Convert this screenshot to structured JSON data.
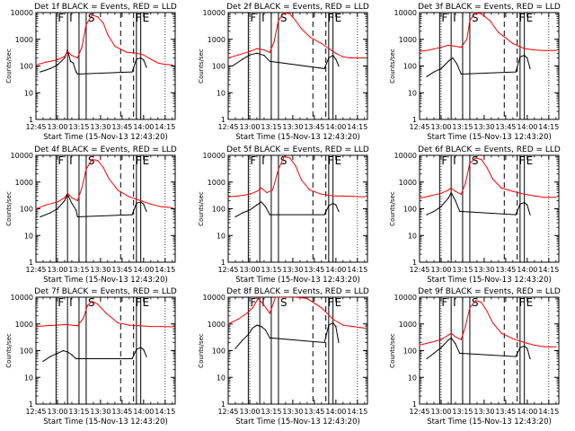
{
  "figure": {
    "xlabel": "Start Time (15-Nov-13 12:43:20)",
    "ylabel": "Counts/sec",
    "x_ticks": [
      "12:45",
      "13:00",
      "13:15",
      "13:30",
      "13:45",
      "14:00",
      "14:15"
    ],
    "y_ticks": [
      "1",
      "10",
      "100",
      "1000",
      "10000"
    ],
    "markers": [
      {
        "label": "F",
        "time": "12:59"
      },
      {
        "label": "I",
        "time": "13:07"
      },
      {
        "label": "S",
        "time": "13:20"
      },
      {
        "label": "F",
        "time": "13:53"
      },
      {
        "label": "E",
        "time": "13:58"
      }
    ],
    "colors": {
      "events": "#000000",
      "lld": "#ff0000"
    }
  },
  "chart_data": [
    {
      "type": "line",
      "title": "Det 1f BLACK = Events, RED = LLD",
      "xlim": [
        "12:45",
        "14:22"
      ],
      "ylim": [
        1,
        10000
      ],
      "yscale": "log",
      "series": [
        {
          "name": "Events",
          "color": "#000000",
          "x": [
            "12:48",
            "12:55",
            "13:00",
            "13:05",
            "13:07",
            "13:09",
            "13:11",
            "13:13",
            "13:14",
            "13:52",
            "13:55",
            "13:58",
            "14:00",
            "14:02"
          ],
          "values": [
            60,
            80,
            110,
            200,
            400,
            150,
            130,
            60,
            50,
            60,
            180,
            200,
            170,
            90
          ]
        },
        {
          "name": "LLD",
          "color": "#ff0000",
          "x": [
            "12:45",
            "12:52",
            "13:00",
            "13:05",
            "13:07",
            "13:10",
            "13:14",
            "13:17",
            "13:20",
            "13:24",
            "13:28",
            "13:32",
            "13:35",
            "13:40",
            "13:48",
            "13:55",
            "14:00",
            "14:05",
            "14:10",
            "14:15",
            "14:20"
          ],
          "values": [
            110,
            140,
            170,
            230,
            350,
            250,
            200,
            500,
            3500,
            8000,
            7000,
            4000,
            1500,
            550,
            330,
            300,
            260,
            180,
            130,
            115,
            110
          ]
        }
      ]
    },
    {
      "type": "line",
      "title": "Det 2f BLACK = Events, RED = LLD",
      "xlim": [
        "12:45",
        "14:22"
      ],
      "ylim": [
        1,
        10000
      ],
      "yscale": "log",
      "series": [
        {
          "name": "Events",
          "color": "#000000",
          "x": [
            "12:48",
            "12:55",
            "13:00",
            "13:05",
            "13:10",
            "13:14",
            "13:52",
            "13:55",
            "13:58",
            "14:00",
            "14:02"
          ],
          "values": [
            100,
            180,
            260,
            300,
            250,
            150,
            80,
            200,
            250,
            180,
            100
          ]
        },
        {
          "name": "LLD",
          "color": "#ff0000",
          "x": [
            "12:45",
            "12:52",
            "13:00",
            "13:05",
            "13:10",
            "13:14",
            "13:17",
            "13:20",
            "13:24",
            "13:28",
            "13:32",
            "13:36",
            "13:42",
            "13:50",
            "13:55",
            "14:00",
            "14:05",
            "14:10",
            "14:20"
          ],
          "values": [
            200,
            260,
            350,
            450,
            400,
            320,
            800,
            5000,
            10000,
            9000,
            5000,
            2500,
            1200,
            700,
            450,
            300,
            220,
            200,
            200
          ]
        }
      ]
    },
    {
      "type": "line",
      "title": "Det 3f BLACK = Events, RED = LLD",
      "xlim": [
        "12:45",
        "14:22"
      ],
      "ylim": [
        1,
        10000
      ],
      "yscale": "log",
      "series": [
        {
          "name": "Events",
          "color": "#000000",
          "x": [
            "12:50",
            "12:55",
            "13:00",
            "13:05",
            "13:08",
            "13:11",
            "13:14",
            "13:52",
            "13:55",
            "13:58",
            "14:00",
            "14:02"
          ],
          "values": [
            40,
            60,
            80,
            150,
            200,
            120,
            50,
            60,
            220,
            250,
            200,
            80
          ]
        },
        {
          "name": "LLD",
          "color": "#ff0000",
          "x": [
            "12:45",
            "12:52",
            "13:00",
            "13:05",
            "13:10",
            "13:14",
            "13:18",
            "13:20",
            "13:24",
            "13:28",
            "13:34",
            "13:40",
            "13:50",
            "13:58",
            "14:05",
            "14:12",
            "14:20"
          ],
          "values": [
            350,
            400,
            500,
            600,
            550,
            500,
            1000,
            5000,
            10000,
            9000,
            5000,
            1800,
            700,
            450,
            400,
            380,
            380
          ]
        }
      ]
    },
    {
      "type": "line",
      "title": "Det 4f BLACK = Events, RED = LLD",
      "xlim": [
        "12:45",
        "14:22"
      ],
      "ylim": [
        1,
        10000
      ],
      "yscale": "log",
      "series": [
        {
          "name": "Events",
          "color": "#000000",
          "x": [
            "12:48",
            "12:55",
            "13:00",
            "13:05",
            "13:07",
            "13:10",
            "13:13",
            "13:14",
            "13:52",
            "13:55",
            "13:58",
            "14:00",
            "14:02"
          ],
          "values": [
            50,
            70,
            100,
            200,
            350,
            160,
            90,
            50,
            60,
            160,
            180,
            150,
            80
          ]
        },
        {
          "name": "LLD",
          "color": "#ff0000",
          "x": [
            "12:45",
            "12:52",
            "13:00",
            "13:05",
            "13:07",
            "13:10",
            "13:14",
            "13:17",
            "13:20",
            "13:24",
            "13:28",
            "13:32",
            "13:36",
            "13:42",
            "13:50",
            "13:58",
            "14:05",
            "14:12",
            "14:20"
          ],
          "values": [
            100,
            140,
            180,
            260,
            380,
            260,
            200,
            600,
            3000,
            7000,
            6500,
            3500,
            1300,
            500,
            280,
            200,
            150,
            120,
            110
          ]
        }
      ]
    },
    {
      "type": "line",
      "title": "Det 5f BLACK = Events, RED = LLD",
      "xlim": [
        "12:45",
        "14:22"
      ],
      "ylim": [
        1,
        10000
      ],
      "yscale": "log",
      "series": [
        {
          "name": "Events",
          "color": "#000000",
          "x": [
            "12:50",
            "12:55",
            "13:00",
            "13:05",
            "13:08",
            "13:11",
            "13:14",
            "13:52",
            "13:55",
            "13:58",
            "14:00",
            "14:02"
          ],
          "values": [
            50,
            70,
            90,
            140,
            180,
            120,
            60,
            60,
            130,
            160,
            140,
            80
          ]
        },
        {
          "name": "LLD",
          "color": "#ff0000",
          "x": [
            "12:45",
            "12:52",
            "13:00",
            "13:05",
            "13:08",
            "13:12",
            "13:16",
            "13:20",
            "13:24",
            "13:28",
            "13:32",
            "13:36",
            "13:42",
            "13:50",
            "13:58",
            "14:05",
            "14:12",
            "14:20"
          ],
          "values": [
            280,
            300,
            350,
            450,
            600,
            400,
            500,
            3000,
            9000,
            8000,
            4000,
            1200,
            500,
            350,
            300,
            300,
            290,
            280
          ]
        }
      ]
    },
    {
      "type": "line",
      "title": "Det 6f BLACK = Events, RED = LLD",
      "xlim": [
        "12:45",
        "14:22"
      ],
      "ylim": [
        1,
        10000
      ],
      "yscale": "log",
      "series": [
        {
          "name": "Events",
          "color": "#000000",
          "x": [
            "12:50",
            "12:55",
            "13:00",
            "13:05",
            "13:07",
            "13:10",
            "13:13",
            "13:52",
            "13:55",
            "13:58",
            "14:00",
            "14:02"
          ],
          "values": [
            60,
            80,
            120,
            250,
            400,
            200,
            80,
            60,
            150,
            170,
            140,
            60
          ]
        },
        {
          "name": "LLD",
          "color": "#ff0000",
          "x": [
            "12:45",
            "12:52",
            "13:00",
            "13:05",
            "13:07",
            "13:10",
            "13:14",
            "13:17",
            "13:20",
            "13:24",
            "13:28",
            "13:32",
            "13:36",
            "13:42",
            "13:50",
            "13:58",
            "14:05",
            "14:12",
            "14:20"
          ],
          "values": [
            250,
            300,
            380,
            500,
            600,
            450,
            350,
            900,
            5000,
            8000,
            7000,
            3500,
            1300,
            600,
            450,
            350,
            300,
            270,
            270
          ]
        }
      ]
    },
    {
      "type": "line",
      "title": "Det 7f BLACK = Events, RED = LLD",
      "xlim": [
        "12:45",
        "14:22"
      ],
      "ylim": [
        1,
        10000
      ],
      "yscale": "log",
      "series": [
        {
          "name": "Events",
          "color": "#000000",
          "x": [
            "12:50",
            "12:55",
            "13:00",
            "13:04",
            "13:07",
            "13:10",
            "13:13",
            "13:52",
            "13:55",
            "13:58",
            "14:00",
            "14:02"
          ],
          "values": [
            40,
            60,
            80,
            100,
            90,
            70,
            50,
            50,
            110,
            130,
            110,
            60
          ]
        },
        {
          "name": "LLD",
          "color": "#ff0000",
          "x": [
            "12:45",
            "12:52",
            "13:00",
            "13:05",
            "13:10",
            "13:14",
            "13:18",
            "13:21",
            "13:24",
            "13:28",
            "13:34",
            "13:42",
            "13:50",
            "13:58",
            "14:05",
            "14:12",
            "14:20"
          ],
          "values": [
            800,
            850,
            900,
            950,
            900,
            850,
            1600,
            5000,
            7000,
            5500,
            2500,
            1100,
            900,
            850,
            800,
            800,
            780
          ]
        }
      ]
    },
    {
      "type": "line",
      "title": "Det 8f BLACK = Events, RED = LLD",
      "xlim": [
        "12:45",
        "14:22"
      ],
      "ylim": [
        1,
        10000
      ],
      "yscale": "log",
      "series": [
        {
          "name": "Events",
          "color": "#000000",
          "x": [
            "12:50",
            "12:55",
            "12:59",
            "13:02",
            "13:05",
            "13:08",
            "13:11",
            "13:14",
            "13:52",
            "13:55",
            "13:58",
            "14:00",
            "14:02"
          ],
          "values": [
            120,
            250,
            400,
            700,
            900,
            800,
            600,
            300,
            200,
            900,
            1100,
            800,
            200
          ]
        },
        {
          "name": "LLD",
          "color": "#ff0000",
          "x": [
            "12:45",
            "12:52",
            "12:58",
            "13:02",
            "13:06",
            "13:10",
            "13:14",
            "13:18",
            "13:22",
            "13:26",
            "13:32",
            "13:40",
            "13:50",
            "13:58",
            "14:05",
            "14:12",
            "14:20"
          ],
          "values": [
            1000,
            1500,
            2500,
            4000,
            9000,
            5000,
            2500,
            10000,
            10000,
            10000,
            10000,
            9000,
            4000,
            1500,
            900,
            800,
            700
          ]
        }
      ]
    },
    {
      "type": "line",
      "title": "Det 9f BLACK = Events, RED = LLD",
      "xlim": [
        "12:45",
        "14:22"
      ],
      "ylim": [
        1,
        10000
      ],
      "yscale": "log",
      "series": [
        {
          "name": "Events",
          "color": "#000000",
          "x": [
            "12:50",
            "12:55",
            "13:00",
            "13:05",
            "13:07",
            "13:10",
            "13:13",
            "13:52",
            "13:55",
            "13:58",
            "14:00",
            "14:02"
          ],
          "values": [
            50,
            80,
            130,
            250,
            300,
            180,
            80,
            60,
            130,
            150,
            120,
            50
          ]
        },
        {
          "name": "LLD",
          "color": "#ff0000",
          "x": [
            "12:45",
            "12:52",
            "13:00",
            "13:05",
            "13:07",
            "13:10",
            "13:14",
            "13:17",
            "13:20",
            "13:24",
            "13:28",
            "13:32",
            "13:36",
            "13:42",
            "13:50",
            "13:58",
            "14:05",
            "14:12",
            "14:20"
          ],
          "values": [
            160,
            200,
            260,
            380,
            450,
            330,
            260,
            800,
            4000,
            7500,
            6500,
            3000,
            1100,
            450,
            280,
            200,
            160,
            140,
            140
          ]
        }
      ]
    }
  ]
}
